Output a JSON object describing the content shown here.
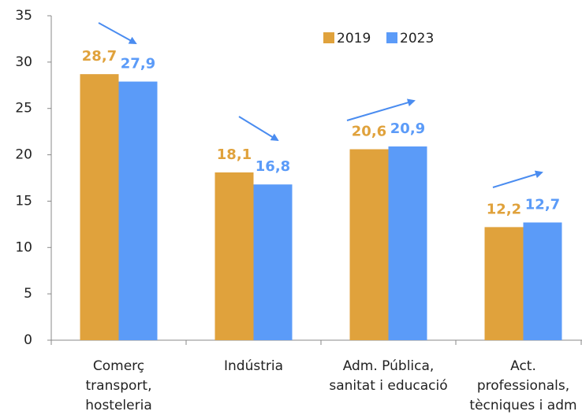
{
  "chart_data": {
    "type": "bar",
    "categories": [
      "Comerç\ntransport,\nhosteleria",
      "Indústria",
      "Adm. Pública,\nsanitat i educació",
      "Act.\nprofessionals,\ntècniques i adm"
    ],
    "series": [
      {
        "name": "2019",
        "color": "#e0a23c",
        "values": [
          28.7,
          18.1,
          20.6,
          12.2
        ],
        "value_labels": [
          "28,7",
          "18,1",
          "20,6",
          "12,2"
        ]
      },
      {
        "name": "2023",
        "color": "#5b9bf8",
        "values": [
          27.9,
          16.8,
          20.9,
          12.7
        ],
        "value_labels": [
          "27,9",
          "16,8",
          "20,9",
          "12,7"
        ]
      }
    ],
    "ylim": [
      0,
      35
    ],
    "yticks": [
      0,
      5,
      10,
      15,
      20,
      25,
      30,
      35
    ],
    "grid": false
  }
}
